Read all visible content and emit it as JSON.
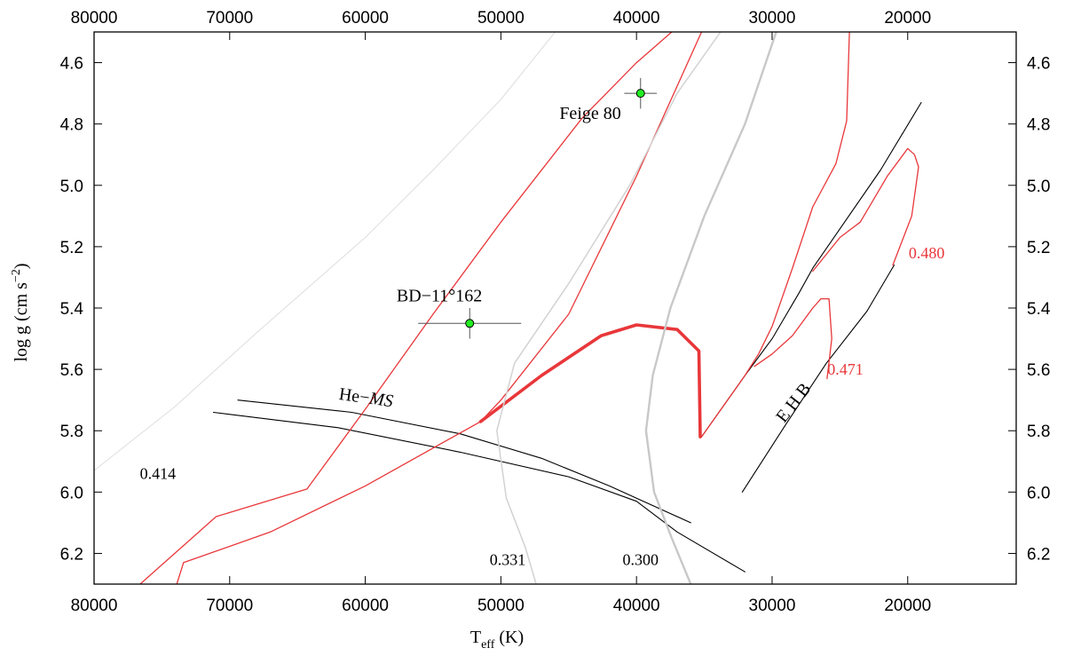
{
  "chart_data": {
    "type": "line",
    "title": "",
    "xlabel_main": "T",
    "xlabel_sub": "eff",
    "xlabel_unit": "(K)",
    "ylabel": "log g (cm s",
    "ylabel_sup": "−2",
    "ylabel_close": ")",
    "xlim": [
      80000,
      12000
    ],
    "ylim": [
      4.5,
      6.3
    ],
    "x_ticks": [
      80000,
      70000,
      60000,
      50000,
      40000,
      30000,
      20000
    ],
    "y_ticks": [
      4.6,
      4.8,
      5.0,
      5.2,
      5.4,
      5.6,
      5.8,
      6.0,
      6.2
    ],
    "y_tick_labels": [
      "4.6",
      "4.8",
      "5.0",
      "5.2",
      "5.4",
      "5.6",
      "5.8",
      "6.0",
      "6.2"
    ],
    "stars": [
      {
        "name": "Feige 80",
        "teff": 39700,
        "logg": 4.7,
        "teff_err": 1200,
        "logg_err": 0.05
      },
      {
        "name": "BD−11°162",
        "teff": 52300,
        "logg": 5.45,
        "teff_err": 3800,
        "logg_err": 0.05
      }
    ],
    "annotations": [
      {
        "text": "He−",
        "italic_text": "MS",
        "teff": 60000,
        "logg": 5.71,
        "kind": "he-ms"
      },
      {
        "text": "E H B",
        "teff": 28100,
        "logg": 5.72,
        "kind": "ehb"
      },
      {
        "text": "0.414",
        "teff": 75300,
        "logg": 5.94,
        "kind": "mass",
        "color": "#000000"
      },
      {
        "text": "0.331",
        "teff": 49500,
        "logg": 6.22,
        "kind": "mass",
        "color": "#000000"
      },
      {
        "text": "0.300",
        "teff": 39700,
        "logg": 6.22,
        "kind": "mass",
        "color": "#000000"
      },
      {
        "text": "0.480",
        "teff": 18600,
        "logg": 5.22,
        "kind": "mass",
        "color": "#e8373a"
      },
      {
        "text": "0.471",
        "teff": 24600,
        "logg": 5.6,
        "kind": "mass",
        "color": "#e8373a"
      }
    ],
    "series": [
      {
        "style": "black",
        "points": [
          [
            71200,
            5.74
          ],
          [
            62000,
            5.79
          ],
          [
            53000,
            5.87
          ],
          [
            45000,
            5.95
          ],
          [
            40000,
            6.03
          ],
          [
            37000,
            6.13
          ],
          [
            32000,
            6.26
          ]
        ]
      },
      {
        "style": "black",
        "points": [
          [
            69400,
            5.7
          ],
          [
            61000,
            5.74
          ],
          [
            53000,
            5.81
          ],
          [
            47000,
            5.89
          ],
          [
            42000,
            5.98
          ],
          [
            36000,
            6.1
          ]
        ]
      },
      {
        "style": "black",
        "points": [
          [
            35200,
            5.82
          ],
          [
            32000,
            5.62
          ],
          [
            30000,
            5.5
          ],
          [
            28000,
            5.35
          ],
          [
            27000,
            5.27
          ],
          [
            22000,
            4.95
          ],
          [
            19000,
            4.73
          ]
        ]
      },
      {
        "style": "black",
        "points": [
          [
            32200,
            6.0
          ],
          [
            29000,
            5.78
          ],
          [
            26000,
            5.58
          ],
          [
            23000,
            5.41
          ],
          [
            21000,
            5.26
          ]
        ]
      },
      {
        "style": "red",
        "points": [
          [
            76600,
            6.3
          ],
          [
            71000,
            6.08
          ],
          [
            64300,
            5.99
          ],
          [
            60000,
            5.73
          ],
          [
            55000,
            5.42
          ],
          [
            50000,
            5.12
          ],
          [
            44000,
            4.78
          ],
          [
            40000,
            4.6
          ],
          [
            37400,
            4.5
          ]
        ]
      },
      {
        "style": "red",
        "points": [
          [
            73900,
            6.3
          ],
          [
            73400,
            6.23
          ],
          [
            67000,
            6.13
          ],
          [
            60000,
            5.98
          ],
          [
            51500,
            5.77
          ],
          [
            50000,
            5.7
          ],
          [
            45000,
            5.42
          ],
          [
            40000,
            4.97
          ],
          [
            35200,
            4.5
          ]
        ]
      },
      {
        "style": "red-thick",
        "points": [
          [
            51500,
            5.77
          ],
          [
            47000,
            5.62
          ],
          [
            42600,
            5.49
          ],
          [
            40000,
            5.455
          ],
          [
            37000,
            5.47
          ],
          [
            35400,
            5.54
          ],
          [
            35300,
            5.82
          ]
        ]
      },
      {
        "style": "red",
        "points": [
          [
            35200,
            5.82
          ],
          [
            32000,
            5.62
          ],
          [
            31000,
            5.55
          ],
          [
            30000,
            5.46
          ],
          [
            28500,
            5.27
          ],
          [
            27000,
            5.07
          ],
          [
            25300,
            4.93
          ],
          [
            24500,
            4.79
          ],
          [
            24300,
            4.5
          ]
        ]
      },
      {
        "style": "red",
        "points": [
          [
            27000,
            5.28
          ],
          [
            25000,
            5.17
          ],
          [
            23500,
            5.12
          ],
          [
            21500,
            4.97
          ],
          [
            20000,
            4.88
          ],
          [
            19500,
            4.9
          ],
          [
            19200,
            4.94
          ],
          [
            19700,
            5.1
          ],
          [
            21100,
            5.26
          ]
        ]
      },
      {
        "style": "red",
        "points": [
          [
            31300,
            5.59
          ],
          [
            30000,
            5.55
          ],
          [
            28500,
            5.49
          ],
          [
            27000,
            5.4
          ],
          [
            26400,
            5.37
          ],
          [
            25800,
            5.37
          ],
          [
            25600,
            5.5
          ],
          [
            25950,
            5.63
          ]
        ]
      },
      {
        "style": "gray-light",
        "points": [
          [
            80000,
            5.93
          ],
          [
            74000,
            5.72
          ],
          [
            68000,
            5.48
          ],
          [
            60000,
            5.17
          ],
          [
            55000,
            4.95
          ],
          [
            50000,
            4.72
          ],
          [
            46000,
            4.5
          ]
        ]
      },
      {
        "style": "gray",
        "points": [
          [
            33800,
            4.5
          ],
          [
            37000,
            4.7
          ],
          [
            40500,
            5.0
          ],
          [
            45000,
            5.32
          ],
          [
            49000,
            5.58
          ],
          [
            50300,
            5.8
          ],
          [
            49600,
            6.02
          ],
          [
            48200,
            6.18
          ],
          [
            47400,
            6.3
          ]
        ]
      },
      {
        "style": "gray-thick",
        "points": [
          [
            29700,
            4.5
          ],
          [
            32000,
            4.8
          ],
          [
            35000,
            5.1
          ],
          [
            37500,
            5.4
          ],
          [
            38800,
            5.62
          ],
          [
            39300,
            5.8
          ],
          [
            38700,
            6.0
          ],
          [
            37400,
            6.15
          ],
          [
            36000,
            6.3
          ]
        ]
      }
    ],
    "colors": {
      "red": "#e8373a",
      "gray": "#c8c8c8",
      "marker": "#22ee22"
    }
  }
}
